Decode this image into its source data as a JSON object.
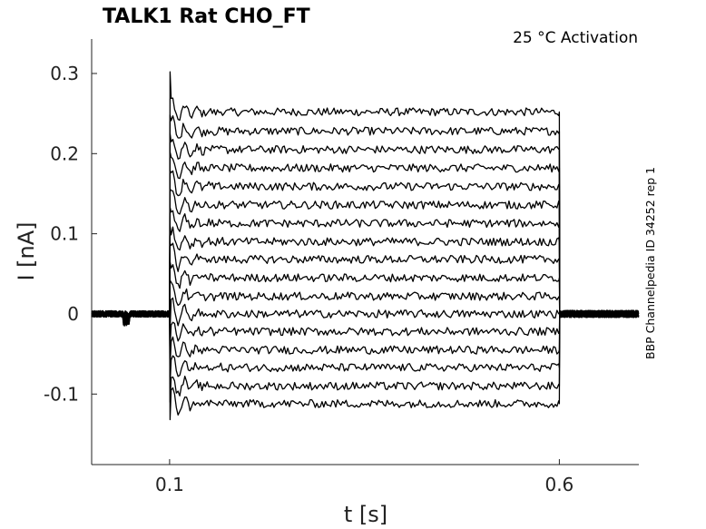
{
  "title": "TALK1  Rat  CHO_FT",
  "condition_label": "25 °C  Activation",
  "side_label": "BBP Channelpedia ID 34252 rep 1",
  "chart_data": {
    "type": "line",
    "title": "TALK1  Rat  CHO_FT",
    "xlabel": "t [s]",
    "ylabel": "I [nA]",
    "xlim": [
      0.0,
      0.702
    ],
    "ylim": [
      -0.188,
      0.343
    ],
    "x_ticks": [
      0.1,
      0.6
    ],
    "x_tick_labels": [
      "0.1",
      "0.6"
    ],
    "y_ticks": [
      0.3,
      0.2,
      0.1,
      0,
      -0.1
    ],
    "y_tick_labels": [
      "0.3",
      "0.2",
      "0.1",
      "0",
      "-0.1"
    ],
    "grid": false,
    "legend": "none",
    "step_start": 0.1,
    "step_end": 0.6,
    "baseline_current": 0.0,
    "series_step_currents": [
      0.252,
      0.228,
      0.205,
      0.182,
      0.159,
      0.136,
      0.113,
      0.09,
      0.068,
      0.045,
      0.022,
      0.0,
      -0.022,
      -0.045,
      -0.067,
      -0.09,
      -0.112
    ]
  }
}
